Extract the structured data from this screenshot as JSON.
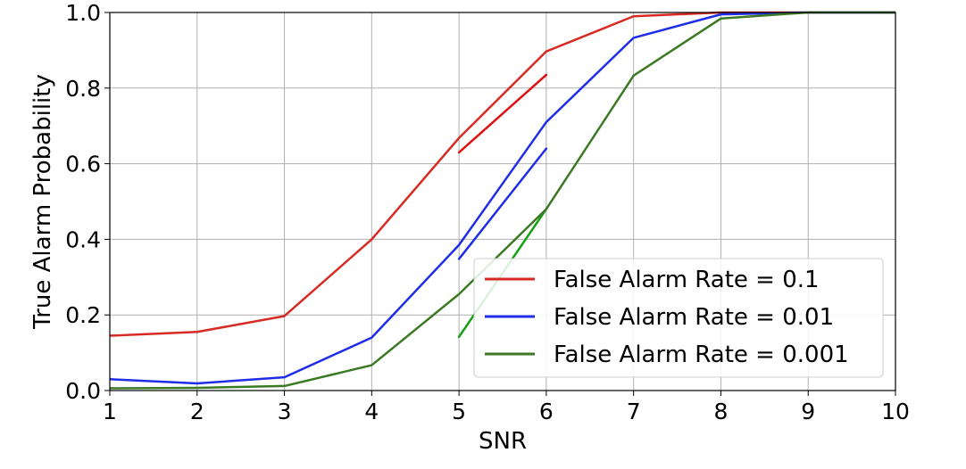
{
  "chart_data": {
    "type": "line",
    "title": "",
    "xlabel": "SNR",
    "ylabel": "True Alarm Probability",
    "xlim": [
      1,
      10
    ],
    "ylim": [
      0.0,
      1.0
    ],
    "xticks": [
      "1",
      "2",
      "3",
      "4",
      "5",
      "6",
      "7",
      "8",
      "9",
      "10"
    ],
    "yticks": [
      "0.0",
      "0.2",
      "0.4",
      "0.6",
      "0.8",
      "1.0"
    ],
    "grid": true,
    "legend_position": "lower-right",
    "series": [
      {
        "name": "False Alarm Rate = 0.1",
        "color": "#d62a22",
        "x": [
          1,
          2,
          3,
          4,
          5,
          6,
          7,
          8,
          9,
          10
        ],
        "y": [
          0.145,
          0.155,
          0.197,
          0.4,
          0.668,
          0.897,
          0.99,
          1.0,
          1.0,
          1.0
        ]
      },
      {
        "name": "False Alarm Rate = 0.01",
        "color": "#1f2de8",
        "x": [
          1,
          2,
          3,
          4,
          5,
          6,
          7,
          8,
          9,
          10
        ],
        "y": [
          0.03,
          0.019,
          0.035,
          0.14,
          0.385,
          0.71,
          0.933,
          0.995,
          1.0,
          1.0
        ]
      },
      {
        "name": "False Alarm Rate = 0.001",
        "color": "#3b7a23",
        "x": [
          1,
          2,
          3,
          4,
          5,
          6,
          7,
          8,
          9,
          10
        ],
        "y": [
          0.006,
          0.007,
          0.012,
          0.067,
          0.255,
          0.48,
          0.833,
          0.984,
          1.0,
          1.0
        ]
      }
    ],
    "segments": [
      {
        "color": "#e01010",
        "x": [
          5,
          6
        ],
        "y": [
          0.63,
          0.835
        ]
      },
      {
        "color": "#1f2de8",
        "x": [
          5,
          6
        ],
        "y": [
          0.348,
          0.64
        ]
      },
      {
        "color": "#13a013",
        "x": [
          5,
          6
        ],
        "y": [
          0.142,
          0.48
        ]
      }
    ]
  }
}
